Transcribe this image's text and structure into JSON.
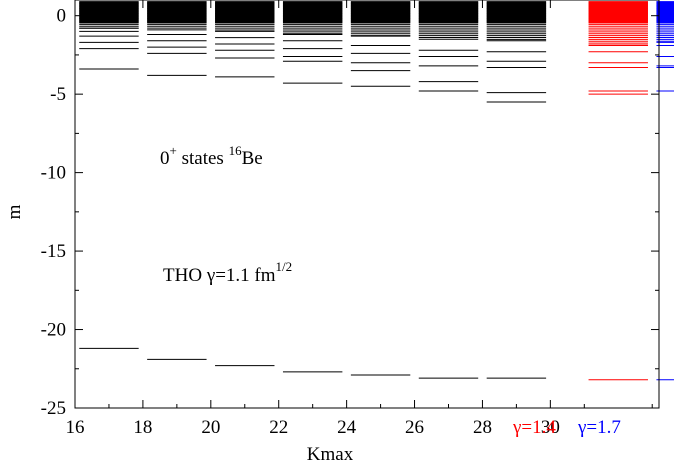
{
  "chart_data": {
    "type": "scatter",
    "xlabel": "Kmax",
    "ylabel": "m",
    "xlim": [
      16,
      33.2
    ],
    "ylim": [
      -25,
      1
    ],
    "xticks": [
      16,
      18,
      20,
      22,
      24,
      26,
      28,
      30
    ],
    "yticks": [
      0,
      -5,
      -10,
      -15,
      -20,
      -25
    ],
    "tick_labels_x": [
      "16",
      "18",
      "20",
      "22",
      "24",
      "26",
      "28",
      "30"
    ],
    "tick_labels_y": [
      "0",
      "-5",
      "-10",
      "-15",
      "-20",
      "-25"
    ],
    "grid": false,
    "annotations": {
      "states_prefix": "0",
      "states_sup": "+",
      "states_mid": " states ",
      "states_iso_sup": "16",
      "states_iso": "Be",
      "tho_prefix": "THO ",
      "tho_gamma": "γ",
      "tho_value": "=1.1 fm",
      "tho_sup": "1/2"
    },
    "extra_labels": [
      {
        "gamma": "γ",
        "value": "=1.4",
        "color": "#ff0000"
      },
      {
        "gamma": "γ",
        "value": "=1.7",
        "color": "#0000ff"
      }
    ],
    "series": [
      {
        "kmax": 17,
        "color": "#000000",
        "levels": [
          -21.2,
          -3.4,
          -2.1,
          -1.7,
          -1.3,
          -1.0,
          -0.8
        ]
      },
      {
        "kmax": 19,
        "color": "#000000",
        "levels": [
          -21.9,
          -3.8,
          -2.4,
          -2.0,
          -1.6,
          -1.2,
          -0.9
        ]
      },
      {
        "kmax": 21,
        "color": "#000000",
        "levels": [
          -22.3,
          -3.9,
          -2.7,
          -2.2,
          -1.8,
          -1.4,
          -1.0
        ]
      },
      {
        "kmax": 23,
        "color": "#000000",
        "levels": [
          -22.7,
          -4.3,
          -2.9,
          -2.6,
          -2.1,
          -1.6,
          -1.2
        ]
      },
      {
        "kmax": 25,
        "color": "#000000",
        "levels": [
          -22.9,
          -4.5,
          -3.5,
          -3.0,
          -2.4,
          -1.9,
          -1.3
        ]
      },
      {
        "kmax": 27,
        "color": "#000000",
        "levels": [
          -23.1,
          -4.8,
          -4.2,
          -3.2,
          -2.6,
          -2.2,
          -1.5
        ]
      },
      {
        "kmax": 29,
        "color": "#000000",
        "levels": [
          -23.1,
          -5.5,
          -4.9,
          -3.3,
          -2.9,
          -2.3,
          -1.6
        ]
      },
      {
        "kmax": 32,
        "color": "#ff0000",
        "levels": [
          -23.2,
          -5.0,
          -4.8,
          -3.3,
          -3.0,
          -2.3,
          -1.9
        ]
      },
      {
        "kmax": 34,
        "color": "#0000ff",
        "levels": [
          -23.2,
          -4.8,
          -3.3,
          -3.2,
          -2.6,
          -1.9,
          -1.7
        ]
      }
    ],
    "dense_band": {
      "top": 0.9,
      "note_level": -0.5
    }
  }
}
